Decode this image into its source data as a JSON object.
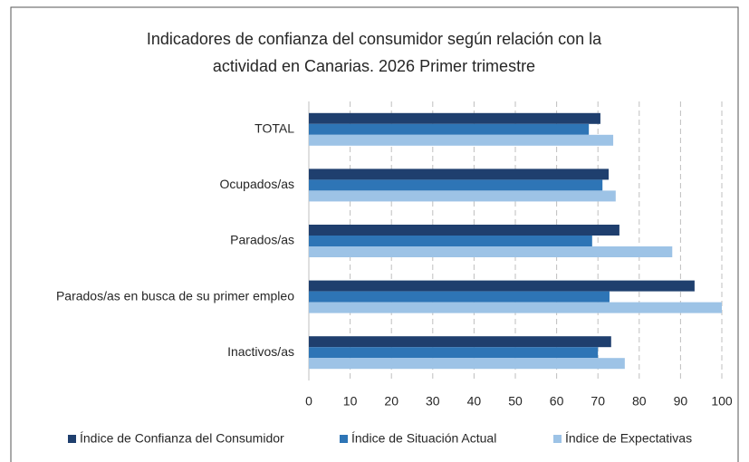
{
  "chart_data": {
    "type": "barh",
    "title": [
      "Indicadores de confianza del consumidor según relación con la",
      "actividad en Canarias. 2026 Primer trimestre"
    ],
    "categories": [
      "TOTAL",
      "Ocupados/as",
      "Parados/as",
      "Parados/as en busca de su primer empleo",
      "Inactivos/as"
    ],
    "series": [
      {
        "name": "Índice de Confianza del Consumidor",
        "color": "#1f3f6e",
        "values": [
          70.6,
          72.6,
          75.2,
          93.4,
          73.2
        ]
      },
      {
        "name": "Índice de Situación Actual",
        "color": "#2e75b6",
        "values": [
          67.8,
          71.1,
          68.6,
          72.8,
          70.0
        ]
      },
      {
        "name": "Índice de Expectativas",
        "color": "#9dc3e6",
        "values": [
          73.7,
          74.3,
          88.0,
          100,
          76.5
        ]
      }
    ],
    "xlim": [
      0,
      100
    ],
    "xticks": [
      0,
      10,
      20,
      30,
      40,
      50,
      60,
      70,
      80,
      90,
      100
    ],
    "grid": true
  }
}
